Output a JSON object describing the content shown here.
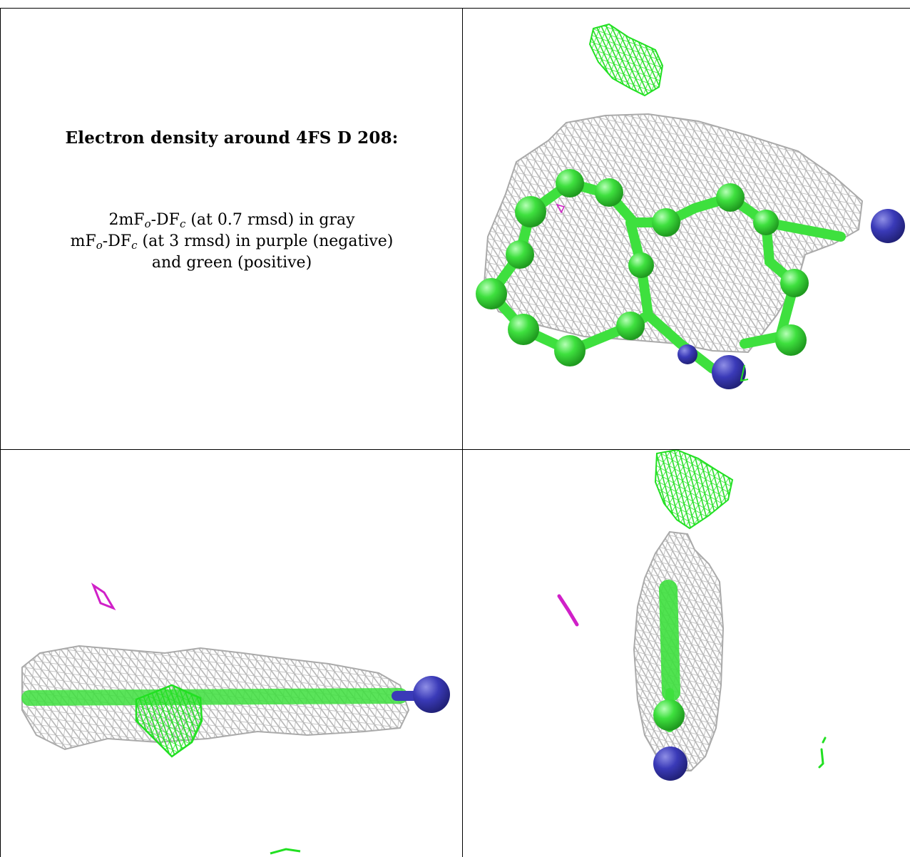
{
  "caption": {
    "title": "Electron density around 4FS D 208:",
    "line1": {
      "a": "2mF",
      "a_sub": "o",
      "b": "-DF",
      "b_sub": "c",
      "rest": " (at 0.7 rmsd) in gray"
    },
    "line2": {
      "a": "mF",
      "a_sub": "o",
      "b": "-DF",
      "b_sub": "c",
      "rest": " (at 3 rmsd) in purple (negative)"
    },
    "line3": "and green (positive)"
  },
  "panels": [
    {
      "view": "top-right",
      "description_icon": "density-mesh-face-view"
    },
    {
      "view": "bottom-left",
      "description_icon": "density-mesh-side-view"
    },
    {
      "view": "bottom-right",
      "description_icon": "density-mesh-edge-view"
    }
  ],
  "colors": {
    "mesh_gray": "#a9a9a9",
    "mesh_green": "#22e022",
    "mesh_purple": "#d020c8",
    "carbon": "#3ee03e",
    "nitrogen": "#3a3ab8"
  }
}
